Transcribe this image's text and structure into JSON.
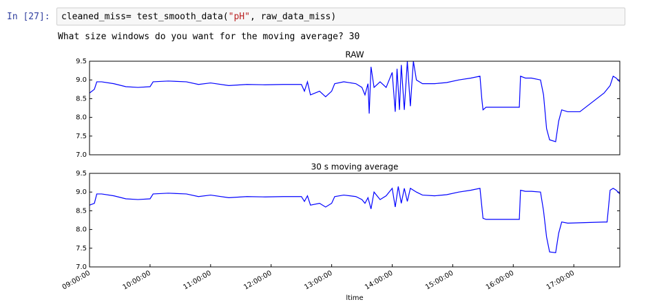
{
  "notebook": {
    "prompt": "In [27]:",
    "code": [
      {
        "text": "cleaned_miss= test_smooth_data(",
        "color": "#000000"
      },
      {
        "text": "\"pH\"",
        "color": "#ba2121"
      },
      {
        "text": ", raw_data_miss)",
        "color": "#000000"
      }
    ],
    "output": "What size windows do you want for the moving average? 30"
  },
  "chart_data": [
    {
      "type": "line",
      "title": "RAW",
      "color": "#0000ff",
      "x": [
        9.0,
        9.08,
        9.12,
        9.2,
        9.4,
        9.6,
        9.8,
        10.0,
        10.05,
        10.3,
        10.6,
        10.8,
        11.0,
        11.3,
        11.6,
        11.9,
        12.2,
        12.5,
        12.55,
        12.6,
        12.65,
        12.8,
        12.9,
        13.0,
        13.05,
        13.2,
        13.4,
        13.5,
        13.55,
        13.6,
        13.62,
        13.65,
        13.7,
        13.8,
        13.9,
        14.0,
        14.05,
        14.08,
        14.12,
        14.15,
        14.2,
        14.25,
        14.3,
        14.35,
        14.4,
        14.5,
        14.7,
        14.9,
        15.1,
        15.3,
        15.45,
        15.48,
        15.5,
        15.55,
        16.1,
        16.12,
        16.2,
        16.3,
        16.45,
        16.5,
        16.55,
        16.6,
        16.7,
        16.75,
        16.8,
        16.9,
        17.1,
        17.5,
        17.6,
        17.65,
        17.7,
        17.76
      ],
      "values": [
        8.65,
        8.75,
        8.95,
        8.95,
        8.9,
        8.82,
        8.8,
        8.82,
        8.95,
        8.97,
        8.95,
        8.88,
        8.92,
        8.85,
        8.88,
        8.87,
        8.88,
        8.88,
        8.7,
        8.95,
        8.6,
        8.7,
        8.55,
        8.7,
        8.9,
        8.95,
        8.9,
        8.8,
        8.6,
        8.9,
        8.1,
        9.35,
        8.8,
        8.95,
        8.8,
        9.2,
        8.15,
        9.3,
        8.2,
        9.4,
        8.2,
        9.5,
        8.3,
        9.5,
        9.0,
        8.9,
        8.9,
        8.93,
        9.0,
        9.05,
        9.1,
        8.5,
        8.2,
        8.27,
        8.27,
        9.1,
        9.05,
        9.05,
        9.0,
        8.6,
        7.7,
        7.4,
        7.35,
        7.9,
        8.2,
        8.15,
        8.15,
        8.65,
        8.85,
        9.1,
        9.05,
        8.95
      ],
      "xlim": [
        9,
        17.76
      ],
      "ylim": [
        7.0,
        9.5
      ],
      "yticks": [
        {
          "value": 7,
          "label": "7.0"
        },
        {
          "value": 7.5,
          "label": "7.5"
        },
        {
          "value": 8,
          "label": "8.0"
        },
        {
          "value": 8.5,
          "label": "8.5"
        },
        {
          "value": 9,
          "label": "9.0"
        },
        {
          "value": 9.5,
          "label": "9.5"
        }
      ]
    },
    {
      "type": "line",
      "title": "30 s moving average",
      "color": "#0000ff",
      "xlabel": "ltime",
      "x": [
        9.0,
        9.08,
        9.12,
        9.2,
        9.4,
        9.6,
        9.8,
        10.0,
        10.05,
        10.3,
        10.6,
        10.8,
        11.0,
        11.3,
        11.6,
        11.9,
        12.2,
        12.5,
        12.55,
        12.6,
        12.65,
        12.8,
        12.9,
        13.0,
        13.05,
        13.2,
        13.4,
        13.5,
        13.55,
        13.6,
        13.65,
        13.7,
        13.8,
        13.9,
        14.0,
        14.05,
        14.1,
        14.15,
        14.2,
        14.25,
        14.3,
        14.4,
        14.5,
        14.7,
        14.9,
        15.1,
        15.3,
        15.45,
        15.5,
        15.55,
        16.1,
        16.12,
        16.2,
        16.3,
        16.45,
        16.5,
        16.55,
        16.6,
        16.7,
        16.75,
        16.8,
        16.9,
        17.5,
        17.55,
        17.6,
        17.65,
        17.7,
        17.76
      ],
      "values": [
        8.65,
        8.7,
        8.95,
        8.95,
        8.9,
        8.82,
        8.8,
        8.82,
        8.95,
        8.97,
        8.95,
        8.88,
        8.92,
        8.85,
        8.88,
        8.87,
        8.88,
        8.88,
        8.75,
        8.9,
        8.65,
        8.7,
        8.6,
        8.7,
        8.88,
        8.92,
        8.88,
        8.8,
        8.7,
        8.85,
        8.55,
        9.0,
        8.8,
        8.9,
        9.1,
        8.6,
        9.15,
        8.7,
        9.1,
        8.75,
        9.1,
        9.0,
        8.92,
        8.9,
        8.93,
        9.0,
        9.05,
        9.1,
        8.3,
        8.27,
        8.27,
        9.05,
        9.02,
        9.02,
        9.0,
        8.5,
        7.8,
        7.4,
        7.38,
        7.9,
        8.2,
        8.17,
        8.2,
        8.2,
        9.05,
        9.1,
        9.05,
        8.95
      ],
      "xlim": [
        9,
        17.76
      ],
      "ylim": [
        7.0,
        9.5
      ],
      "yticks": [
        {
          "value": 7,
          "label": "7.0"
        },
        {
          "value": 7.5,
          "label": "7.5"
        },
        {
          "value": 8,
          "label": "8.0"
        },
        {
          "value": 8.5,
          "label": "8.5"
        },
        {
          "value": 9,
          "label": "9.0"
        },
        {
          "value": 9.5,
          "label": "9.5"
        }
      ],
      "xticks": [
        {
          "value": 9,
          "label": "09:00:00"
        },
        {
          "value": 10,
          "label": "10:00:00"
        },
        {
          "value": 11,
          "label": "11:00:00"
        },
        {
          "value": 12,
          "label": "12:00:00"
        },
        {
          "value": 13,
          "label": "13:00:00"
        },
        {
          "value": 14,
          "label": "14:00:00"
        },
        {
          "value": 15,
          "label": "15:00:00"
        },
        {
          "value": 16,
          "label": "16:00:00"
        },
        {
          "value": 17,
          "label": "17:00:00"
        }
      ]
    }
  ]
}
